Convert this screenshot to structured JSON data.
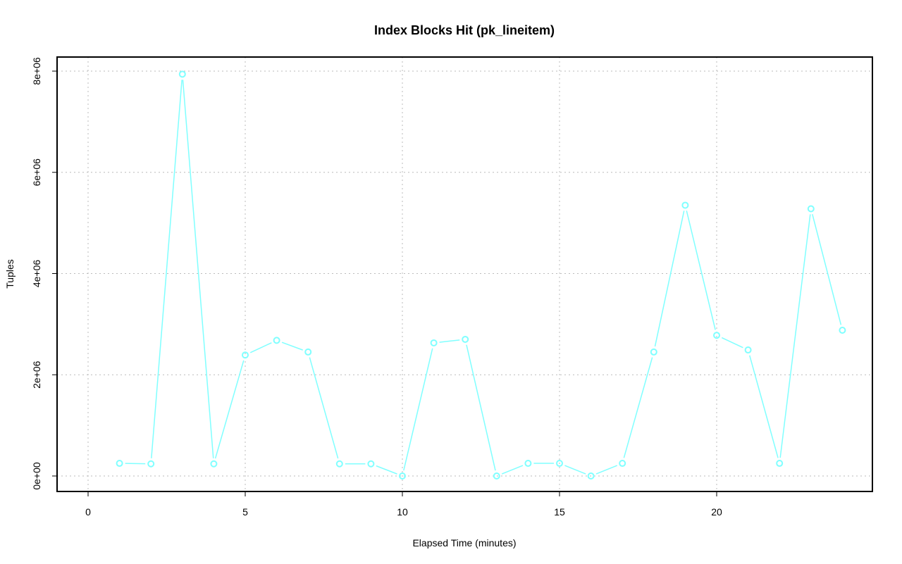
{
  "chart_data": {
    "type": "line",
    "title": "Index Blocks Hit (pk_lineitem)",
    "xlabel": "Elapsed Time (minutes)",
    "ylabel": "Tuples",
    "xlim": [
      -1,
      24.5
    ],
    "ylim": [
      -300000,
      8250000
    ],
    "xticks": [
      0,
      5,
      10,
      15,
      20
    ],
    "xtick_labels": [
      "0",
      "5",
      "10",
      "15",
      "20"
    ],
    "yticks": [
      0,
      2000000,
      4000000,
      6000000,
      8000000
    ],
    "ytick_labels": [
      "0e+00",
      "2e+06",
      "4e+06",
      "6e+06",
      "8e+06"
    ],
    "grid": true,
    "series": [
      {
        "color": "#80ffff",
        "marker": "open-circle",
        "x": [
          1,
          2,
          3,
          4,
          5,
          6,
          7,
          8,
          9,
          10,
          11,
          12,
          13,
          14,
          15,
          16,
          17,
          18,
          19,
          20,
          21,
          22,
          23,
          24
        ],
        "y": [
          250000,
          240000,
          7940000,
          240000,
          2390000,
          2680000,
          2450000,
          240000,
          240000,
          0,
          2630000,
          2700000,
          0,
          250000,
          250000,
          0,
          250000,
          2450000,
          5350000,
          2780000,
          2490000,
          250000,
          5280000,
          2880000
        ]
      }
    ]
  }
}
